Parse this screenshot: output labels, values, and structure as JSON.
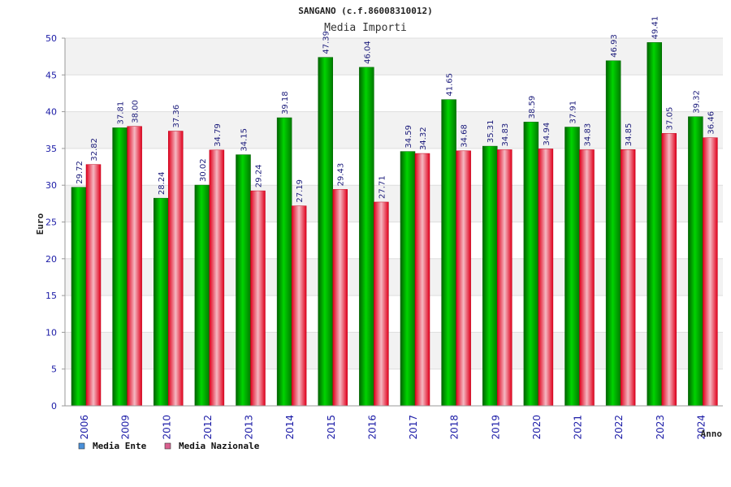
{
  "chart_data": {
    "type": "bar",
    "title": "SANGANO (c.f.86008310012)",
    "subtitle": "Media Importi",
    "ylabel": "Euro",
    "xlabel": "Anno",
    "ylim": [
      0,
      50
    ],
    "yticks": [
      "0",
      "5",
      "10",
      "15",
      "20",
      "25",
      "30",
      "35",
      "40",
      "45",
      "50"
    ],
    "categories": [
      "2006",
      "2009",
      "2010",
      "2012",
      "2013",
      "2014",
      "2015",
      "2016",
      "2017",
      "2018",
      "2019",
      "2020",
      "2021",
      "2022",
      "2023",
      "2024"
    ],
    "series": [
      {
        "name": "Media Ente",
        "color": "#00b000",
        "values": [
          29.72,
          37.81,
          28.24,
          30.02,
          34.15,
          39.18,
          47.39,
          46.04,
          34.59,
          41.65,
          35.31,
          38.59,
          37.91,
          46.93,
          49.41,
          39.32
        ],
        "labels": [
          "29.72",
          "37.81",
          "28.24",
          "30.02",
          "34.15",
          "39.18",
          "47.39",
          "46.04",
          "34.59",
          "41.65",
          "35.31",
          "38.59",
          "37.91",
          "46.93",
          "49.41",
          "39.32"
        ]
      },
      {
        "name": "Media Nazionale",
        "color": "#e8102a",
        "values": [
          32.82,
          38.0,
          37.36,
          34.79,
          29.24,
          27.19,
          29.43,
          27.71,
          34.32,
          34.68,
          34.83,
          34.94,
          34.83,
          34.85,
          37.05,
          36.46
        ],
        "labels": [
          "32.82",
          "38.00",
          "37.36",
          "34.79",
          "29.24",
          "27.19",
          "29.43",
          "27.71",
          "34.32",
          "34.68",
          "34.83",
          "34.94",
          "34.83",
          "34.85",
          "37.05",
          "36.46"
        ]
      }
    ],
    "legend": {
      "placement": "bottom-left",
      "items": [
        {
          "label": "Media Ente",
          "color": "#4a90d9"
        },
        {
          "label": "Media Nazionale",
          "color": "#d9608f"
        }
      ]
    },
    "grid": true,
    "band_colors": [
      "#ffffff",
      "#f2f2f2"
    ]
  }
}
